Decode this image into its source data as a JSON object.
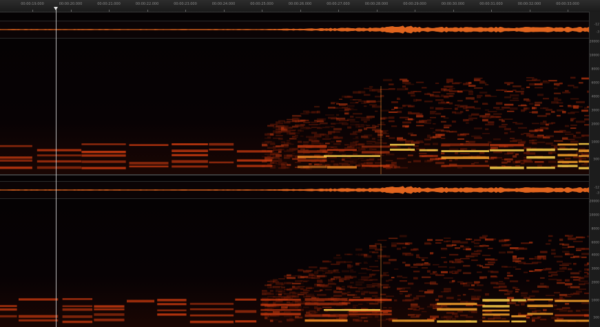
{
  "ruler": {
    "labels": [
      "00:00:19.000",
      "00:00:20.000",
      "00:00:21.000",
      "00:00:22.000",
      "00:00:23.000",
      "00:00:24.000",
      "00:00:25.000",
      "00:00:26.000",
      "00:00:27.000",
      "00:00:28.000",
      "00:00:29.000",
      "00:00:30.000",
      "00:00:31.000",
      "00:00:32.000",
      "00:00:33.000"
    ]
  },
  "scale": {
    "channel_1": [
      "-12",
      "-3",
      "20000",
      "10000",
      "8000",
      "6000",
      "4000",
      "3000",
      "2000",
      "1000",
      "500"
    ],
    "channel_2": [
      "-12",
      "-3",
      "20000",
      "10000",
      "8000",
      "6000",
      "4000",
      "3000",
      "2000",
      "1000",
      "500"
    ]
  },
  "playhead": {
    "position_seconds": 20
  },
  "colors": {
    "background": "#050203",
    "waveform": "#e0641e",
    "low_energy": "#3a0a04",
    "mid_energy": "#c2380f",
    "high_energy": "#ffd34a"
  }
}
